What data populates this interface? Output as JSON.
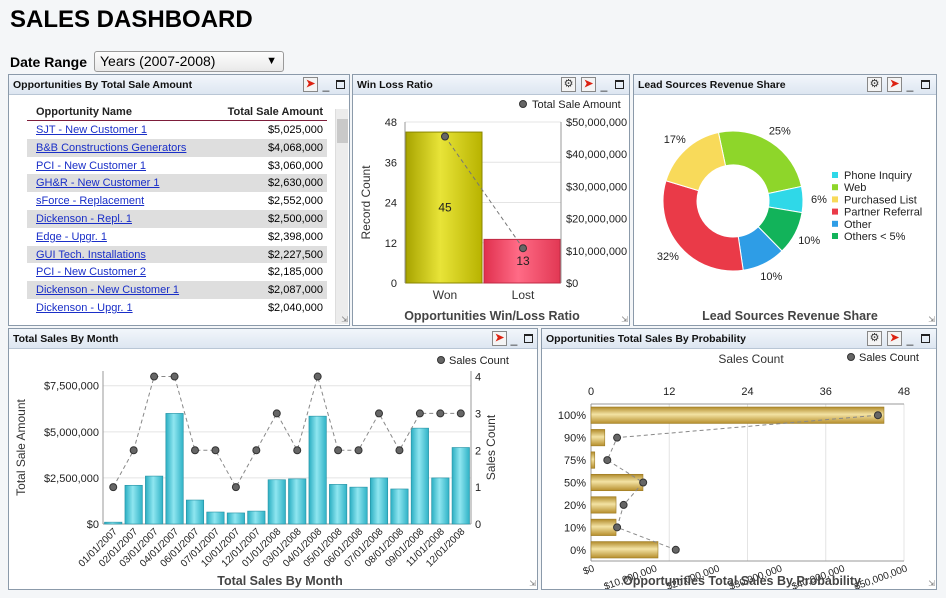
{
  "page": {
    "title": "SALES DASHBOARD",
    "date_range_label": "Date Range",
    "date_range_value": "Years (2007-2008)"
  },
  "panels": {
    "opps": {
      "title": "Opportunities By Total Sale Amount"
    },
    "winloss": {
      "title": "Win Loss Ratio"
    },
    "leads": {
      "title": "Lead Sources Revenue Share"
    },
    "monthly": {
      "title": "Total Sales By Month"
    },
    "prob": {
      "title": "Opportunities Total Sales By Probability"
    }
  },
  "opportunities_table": {
    "columns": [
      "Opportunity Name",
      "Total Sale Amount"
    ],
    "rows": [
      {
        "name": "SJT - New Customer 1",
        "amount": "$5,025,000"
      },
      {
        "name": "B&B Constructions Generators",
        "amount": "$4,068,000"
      },
      {
        "name": "PCI - New Customer 1",
        "amount": "$3,060,000"
      },
      {
        "name": "GH&R - New Customer 1",
        "amount": "$2,630,000"
      },
      {
        "name": "sForce - Replacement",
        "amount": "$2,552,000"
      },
      {
        "name": "Dickenson - Repl. 1",
        "amount": "$2,500,000"
      },
      {
        "name": "Edge - Upgr. 1",
        "amount": "$2,398,000"
      },
      {
        "name": "GUI Tech. Installations",
        "amount": "$2,227,500"
      },
      {
        "name": "PCI - New Customer 2",
        "amount": "$2,185,000"
      },
      {
        "name": "Dickenson - New Customer 1",
        "amount": "$2,087,000"
      },
      {
        "name": "Dickenson - Upgr. 1",
        "amount": "$2,040,000"
      }
    ]
  },
  "chart_data": [
    {
      "type": "bar",
      "title": "Opportunities Win/Loss Ratio",
      "categories": [
        "Won",
        "Lost"
      ],
      "ylabel": "Record Count",
      "ylim": [
        0,
        48
      ],
      "yticks": [
        "0",
        "12",
        "24",
        "36",
        "48"
      ],
      "y2ticks": [
        "$0",
        "$10,000,000",
        "$20,000,000",
        "$30,000,000",
        "$40,000,000",
        "$50,000,000"
      ],
      "y2lim": [
        0,
        50000000
      ],
      "series": [
        {
          "name": "Record Count",
          "values": [
            45,
            13
          ],
          "labels": [
            "45",
            "13"
          ],
          "colors": [
            "#c8c410",
            "#f04868"
          ]
        },
        {
          "name": "Total Sale Amount",
          "values": [
            45500000,
            10800000
          ],
          "kind": "line-dashed"
        }
      ],
      "legend": "top-right"
    },
    {
      "type": "pie",
      "title": "Lead Sources Revenue Share",
      "categories": [
        "Phone Inquiry",
        "Web",
        "Purchased List",
        "Partner Referral",
        "Other",
        "Others < 5%"
      ],
      "values": [
        6,
        25,
        17,
        32,
        10,
        10
      ],
      "labels": [
        "6%",
        "25%",
        "17%",
        "32%",
        "10%",
        "10%"
      ],
      "colors": [
        "#2fd8e8",
        "#8ed62a",
        "#f8da5a",
        "#ea3a48",
        "#2e9de6",
        "#12b35a"
      ],
      "legend": "right"
    },
    {
      "type": "bar",
      "title": "Total Sales By Month",
      "categories": [
        "01/01/2007",
        "02/01/2007",
        "03/01/2007",
        "04/01/2007",
        "06/01/2007",
        "07/01/2007",
        "10/01/2007",
        "12/01/2007",
        "01/01/2008",
        "03/01/2008",
        "04/01/2008",
        "05/01/2008",
        "06/01/2008",
        "07/01/2008",
        "08/01/2008",
        "09/01/2008",
        "11/01/2008",
        "12/01/2008"
      ],
      "ylabel": "Total Sale Amount",
      "ylim": [
        0,
        8300000
      ],
      "yticks": [
        "$0",
        "$2,500,000",
        "$5,000,000",
        "$7,500,000"
      ],
      "y2label": "Sales Count",
      "y2ticks": [
        "0",
        "1",
        "2",
        "3",
        "4"
      ],
      "y2lim": [
        0,
        4.15
      ],
      "series": [
        {
          "name": "Total Sale Amount",
          "values": [
            100000,
            2100000,
            2600000,
            6000000,
            1300000,
            650000,
            600000,
            700000,
            2400000,
            2450000,
            5850000,
            2150000,
            2000000,
            2500000,
            1900000,
            5200000,
            2500000,
            4150000
          ]
        },
        {
          "name": "Sales Count",
          "values": [
            1,
            2,
            4,
            4,
            2,
            2,
            1,
            2,
            3,
            2,
            4,
            2,
            2,
            3,
            2,
            3,
            3,
            3
          ],
          "kind": "line-dashed"
        }
      ],
      "legend": "top-right"
    },
    {
      "type": "bar",
      "orientation": "horizontal",
      "title": "Opportunities Total Sales By Probability",
      "categories": [
        "100%",
        "90%",
        "75%",
        "50%",
        "20%",
        "10%",
        "0%"
      ],
      "xlim": [
        0,
        50000000
      ],
      "xticks": [
        "$0",
        "$10,000,000",
        "$20,000,000",
        "$30,000,000",
        "$40,000,000",
        "$50,000,000"
      ],
      "x2label": "Sales Count",
      "x2ticks": [
        "0",
        "12",
        "24",
        "36",
        "48"
      ],
      "x2lim": [
        0,
        48
      ],
      "series": [
        {
          "name": "Total Sale Amount",
          "values": [
            46800000,
            2200000,
            600000,
            8300000,
            4000000,
            4000000,
            10700000
          ]
        },
        {
          "name": "Sales Count",
          "values": [
            44,
            4,
            2.5,
            8,
            5,
            4,
            13
          ],
          "kind": "line-dashed"
        }
      ],
      "legend": "top-right"
    }
  ],
  "colors": {
    "bar_cyan": "#3fc4d6",
    "bar_gold": "#c9a640",
    "header_bg": "#dde6f1",
    "link": "#1a2fc8"
  }
}
